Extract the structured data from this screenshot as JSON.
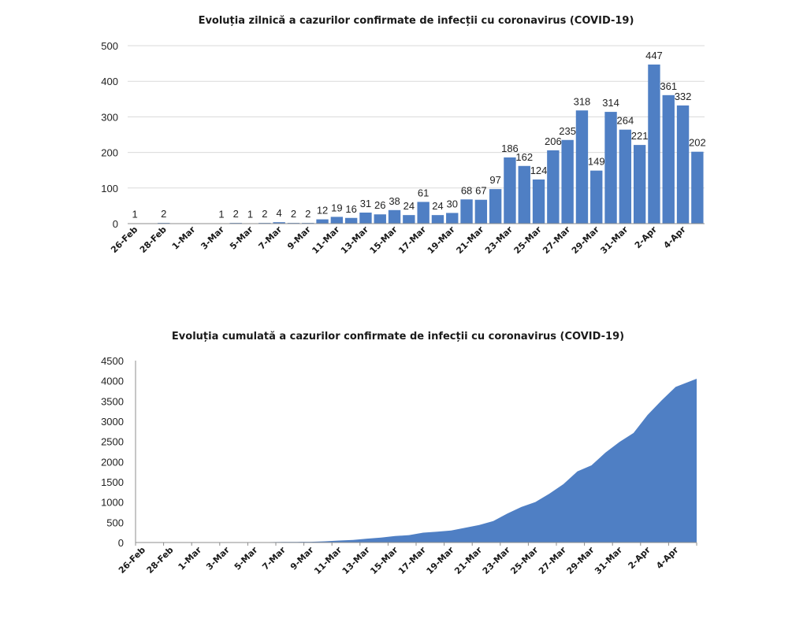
{
  "colors": {
    "series": "#4f7fc4",
    "grid": "#d9d9d9",
    "axis": "#8c8c8c"
  },
  "chart_data": [
    {
      "type": "bar",
      "title": "Evoluția zilnică a cazurilor confirmate de infecții cu coronavirus  (COVID-19)",
      "xlabel": "",
      "ylabel": "",
      "ylim": [
        0,
        500
      ],
      "yticks": [
        0,
        100,
        200,
        300,
        400,
        500
      ],
      "grid": true,
      "categories": [
        "26-Feb",
        "27-Feb",
        "28-Feb",
        "29-Feb",
        "1-Mar",
        "2-Mar",
        "3-Mar",
        "4-Mar",
        "5-Mar",
        "6-Mar",
        "7-Mar",
        "8-Mar",
        "9-Mar",
        "10-Mar",
        "11-Mar",
        "12-Mar",
        "13-Mar",
        "14-Mar",
        "15-Mar",
        "16-Mar",
        "17-Mar",
        "18-Mar",
        "19-Mar",
        "20-Mar",
        "21-Mar",
        "22-Mar",
        "23-Mar",
        "24-Mar",
        "25-Mar",
        "26-Mar",
        "27-Mar",
        "28-Mar",
        "29-Mar",
        "30-Mar",
        "31-Mar",
        "1-Apr",
        "2-Apr",
        "3-Apr",
        "4-Apr",
        "5-Apr"
      ],
      "shown_x_labels": [
        "26-Feb",
        "28-Feb",
        "1-Mar",
        "3-Mar",
        "5-Mar",
        "7-Mar",
        "9-Mar",
        "11-Mar",
        "13-Mar",
        "15-Mar",
        "17-Mar",
        "19-Mar",
        "21-Mar",
        "23-Mar",
        "25-Mar",
        "27-Mar",
        "29-Mar",
        "31-Mar",
        "2-Apr",
        "4-Apr"
      ],
      "values": [
        1,
        0,
        2,
        0,
        0,
        0,
        1,
        2,
        1,
        2,
        4,
        2,
        2,
        12,
        19,
        16,
        31,
        26,
        38,
        24,
        61,
        24,
        30,
        68,
        67,
        97,
        186,
        162,
        124,
        206,
        235,
        318,
        149,
        314,
        264,
        221,
        447,
        361,
        332,
        202
      ],
      "labels": [
        "1",
        "",
        "2",
        "",
        "",
        "",
        "1",
        "2",
        "1",
        "2",
        "4",
        "2",
        "2",
        "12",
        "19",
        "16",
        "31",
        "26",
        "38",
        "24",
        "61",
        "24",
        "30",
        "68",
        "67",
        "97",
        "186",
        "162",
        "124",
        "206",
        "235",
        "318",
        "149",
        "314",
        "264",
        "221",
        "447",
        "361",
        "332",
        "202"
      ]
    },
    {
      "type": "area",
      "title": "Evoluția cumulată a cazurilor confirmate de infecții cu coronavirus (COVID-19)",
      "xlabel": "",
      "ylabel": "",
      "ylim": [
        0,
        4500
      ],
      "yticks": [
        0,
        500,
        1000,
        1500,
        2000,
        2500,
        3000,
        3500,
        4000,
        4500
      ],
      "grid": false,
      "categories": [
        "26-Feb",
        "27-Feb",
        "28-Feb",
        "29-Feb",
        "1-Mar",
        "2-Mar",
        "3-Mar",
        "4-Mar",
        "5-Mar",
        "6-Mar",
        "7-Mar",
        "8-Mar",
        "9-Mar",
        "10-Mar",
        "11-Mar",
        "12-Mar",
        "13-Mar",
        "14-Mar",
        "15-Mar",
        "16-Mar",
        "17-Mar",
        "18-Mar",
        "19-Mar",
        "20-Mar",
        "21-Mar",
        "22-Mar",
        "23-Mar",
        "24-Mar",
        "25-Mar",
        "26-Mar",
        "27-Mar",
        "28-Mar",
        "29-Mar",
        "30-Mar",
        "31-Mar",
        "1-Apr",
        "2-Apr",
        "3-Apr",
        "4-Apr",
        "5-Apr"
      ],
      "shown_x_labels": [
        "26-Feb",
        "28-Feb",
        "1-Mar",
        "3-Mar",
        "5-Mar",
        "7-Mar",
        "9-Mar",
        "11-Mar",
        "13-Mar",
        "15-Mar",
        "17-Mar",
        "19-Mar",
        "21-Mar",
        "23-Mar",
        "25-Mar",
        "27-Mar",
        "29-Mar",
        "31-Mar",
        "2-Apr",
        "4-Apr"
      ],
      "values": [
        1,
        1,
        3,
        3,
        3,
        3,
        4,
        6,
        7,
        9,
        13,
        15,
        17,
        29,
        48,
        64,
        95,
        121,
        159,
        183,
        244,
        268,
        298,
        366,
        433,
        530,
        716,
        878,
        1002,
        1208,
        1443,
        1761,
        1910,
        2224,
        2488,
        2709,
        3156,
        3517,
        3849,
        4051
      ]
    }
  ]
}
